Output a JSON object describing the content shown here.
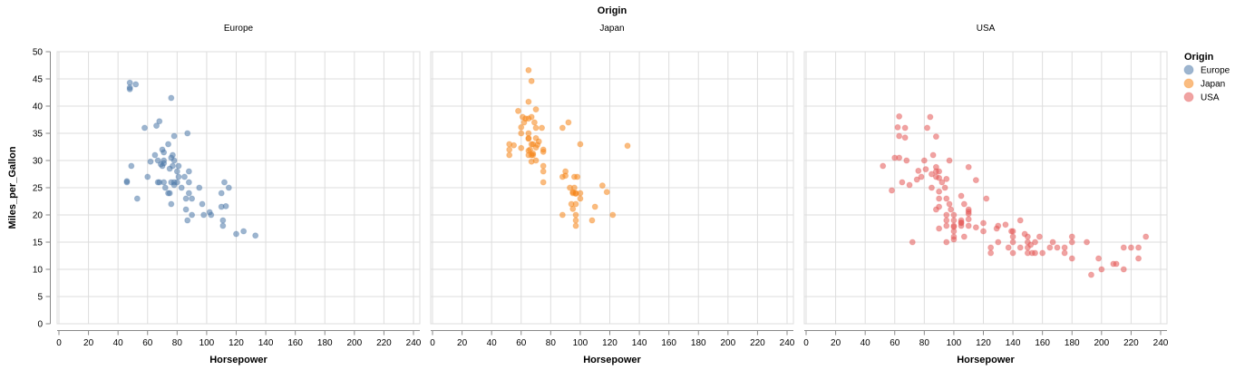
{
  "chart_data": {
    "type": "scatter",
    "title": "Origin",
    "xlabel": "Horsepower",
    "ylabel": "Miles_per_Gallon",
    "xlim": [
      0,
      240
    ],
    "ylim": [
      0,
      50
    ],
    "x_ticks": [
      "0",
      "20",
      "40",
      "60",
      "80",
      "100",
      "120",
      "140",
      "160",
      "180",
      "200",
      "220",
      "240"
    ],
    "y_ticks": [
      "0",
      "5",
      "10",
      "15",
      "20",
      "25",
      "30",
      "35",
      "40",
      "45",
      "50"
    ],
    "grid": true,
    "legend": {
      "title": "Origin",
      "position": "right",
      "entries": [
        "Europe",
        "Japan",
        "USA"
      ]
    },
    "facet_field": "Origin",
    "series": [
      {
        "name": "Europe",
        "color": "#4c78a8",
        "points": [
          [
            46,
            26
          ],
          [
            46,
            26.2
          ],
          [
            48,
            44.3
          ],
          [
            48,
            43.1
          ],
          [
            48,
            43.4
          ],
          [
            49,
            29
          ],
          [
            52,
            44
          ],
          [
            53,
            23
          ],
          [
            58,
            36
          ],
          [
            60,
            27
          ],
          [
            62,
            29.8
          ],
          [
            65,
            31
          ],
          [
            66,
            36.4
          ],
          [
            67,
            26
          ],
          [
            67,
            30
          ],
          [
            68,
            37.2
          ],
          [
            68,
            26
          ],
          [
            69,
            29.3
          ],
          [
            70,
            29
          ],
          [
            70,
            32
          ],
          [
            71,
            31.5
          ],
          [
            71,
            29.5
          ],
          [
            71,
            26
          ],
          [
            71,
            30
          ],
          [
            72,
            25
          ],
          [
            74,
            33
          ],
          [
            74,
            24
          ],
          [
            75,
            24
          ],
          [
            75,
            28.5
          ],
          [
            76,
            26
          ],
          [
            76,
            30.5
          ],
          [
            76,
            41.5
          ],
          [
            76,
            22
          ],
          [
            77,
            31
          ],
          [
            77,
            29
          ],
          [
            78,
            34.5
          ],
          [
            78,
            25.5
          ],
          [
            78,
            30
          ],
          [
            78,
            26
          ],
          [
            80,
            26
          ],
          [
            80,
            28
          ],
          [
            81,
            27
          ],
          [
            81,
            29
          ],
          [
            83,
            25
          ],
          [
            85,
            27
          ],
          [
            86,
            23
          ],
          [
            86,
            21
          ],
          [
            87,
            35
          ],
          [
            87,
            19
          ],
          [
            88,
            28
          ],
          [
            88,
            24
          ],
          [
            88,
            26
          ],
          [
            90,
            20
          ],
          [
            90,
            23
          ],
          [
            95,
            25
          ],
          [
            97,
            22
          ],
          [
            98,
            20
          ],
          [
            102,
            20.5
          ],
          [
            103,
            20
          ],
          [
            110,
            21.5
          ],
          [
            110,
            24
          ],
          [
            111,
            19
          ],
          [
            111,
            18
          ],
          [
            112,
            26
          ],
          [
            113,
            21.6
          ],
          [
            115,
            25
          ],
          [
            120,
            16.5
          ],
          [
            125,
            17
          ],
          [
            133,
            16.2
          ]
        ]
      },
      {
        "name": "Japan",
        "color": "#f58518",
        "points": [
          [
            52,
            31
          ],
          [
            52,
            32
          ],
          [
            52,
            33
          ],
          [
            55,
            32.8
          ],
          [
            58,
            39.1
          ],
          [
            60,
            35
          ],
          [
            60,
            32.3
          ],
          [
            60,
            36.1
          ],
          [
            61,
            38
          ],
          [
            62,
            37
          ],
          [
            63,
            37.7
          ],
          [
            65,
            37.7
          ],
          [
            65,
            35
          ],
          [
            65,
            46.6
          ],
          [
            65,
            34
          ],
          [
            65,
            31
          ],
          [
            65,
            34.1
          ],
          [
            65,
            40.8
          ],
          [
            65,
            31.8
          ],
          [
            66,
            32
          ],
          [
            67,
            38
          ],
          [
            67,
            33
          ],
          [
            67,
            29.8
          ],
          [
            67,
            31
          ],
          [
            67,
            44.6
          ],
          [
            68,
            33
          ],
          [
            68,
            31
          ],
          [
            68,
            31.3
          ],
          [
            69,
            37
          ],
          [
            70,
            34.1
          ],
          [
            70,
            36
          ],
          [
            70,
            30
          ],
          [
            70,
            39.4
          ],
          [
            70,
            32.4
          ],
          [
            71,
            32.9
          ],
          [
            72,
            33.5
          ],
          [
            74,
            36
          ],
          [
            75,
            32
          ],
          [
            75,
            29
          ],
          [
            75,
            28
          ],
          [
            75,
            26
          ],
          [
            75,
            31.6
          ],
          [
            88,
            27
          ],
          [
            88,
            36
          ],
          [
            88,
            20
          ],
          [
            90,
            27.2
          ],
          [
            90,
            28
          ],
          [
            92,
            37
          ],
          [
            93,
            25
          ],
          [
            94,
            22
          ],
          [
            95,
            24
          ],
          [
            95,
            21.1
          ],
          [
            95,
            24.2
          ],
          [
            96,
            27
          ],
          [
            96,
            25
          ],
          [
            97,
            18
          ],
          [
            97,
            19
          ],
          [
            97,
            24
          ],
          [
            97,
            23.9
          ],
          [
            97,
            22
          ],
          [
            97,
            20
          ],
          [
            98,
            27
          ],
          [
            100,
            23
          ],
          [
            100,
            24
          ],
          [
            100,
            33
          ],
          [
            108,
            19
          ],
          [
            110,
            21.5
          ],
          [
            115,
            25.4
          ],
          [
            118,
            24.2
          ],
          [
            122,
            20
          ],
          [
            132,
            32.7
          ]
        ]
      },
      {
        "name": "USA",
        "color": "#e45756",
        "points": [
          [
            52,
            29
          ],
          [
            58,
            24.5
          ],
          [
            60,
            30.5
          ],
          [
            62,
            36.1
          ],
          [
            63,
            38.1
          ],
          [
            63,
            34.5
          ],
          [
            63,
            30.5
          ],
          [
            65,
            26
          ],
          [
            67,
            34.2
          ],
          [
            67,
            36
          ],
          [
            68,
            30
          ],
          [
            70,
            25.5
          ],
          [
            72,
            15
          ],
          [
            75,
            26.5
          ],
          [
            76,
            28.1
          ],
          [
            78,
            27
          ],
          [
            80,
            30
          ],
          [
            81,
            28.4
          ],
          [
            82,
            36
          ],
          [
            84,
            38
          ],
          [
            85,
            25
          ],
          [
            85,
            27.5
          ],
          [
            86,
            31
          ],
          [
            88,
            27
          ],
          [
            88,
            28
          ],
          [
            88,
            28.8
          ],
          [
            88,
            34.4
          ],
          [
            88,
            21
          ],
          [
            90,
            23
          ],
          [
            90,
            17.5
          ],
          [
            90,
            21.5
          ],
          [
            90,
            28
          ],
          [
            90,
            26.8
          ],
          [
            90,
            24.3
          ],
          [
            92,
            26
          ],
          [
            94,
            25
          ],
          [
            95,
            23
          ],
          [
            95,
            19
          ],
          [
            95,
            20
          ],
          [
            95,
            18
          ],
          [
            95,
            15
          ],
          [
            95,
            26.6
          ],
          [
            97,
            30
          ],
          [
            97,
            22
          ],
          [
            98,
            21
          ],
          [
            100,
            20
          ],
          [
            100,
            19
          ],
          [
            100,
            17
          ],
          [
            100,
            15.5
          ],
          [
            100,
            18
          ],
          [
            100,
            16
          ],
          [
            100,
            17.8
          ],
          [
            105,
            18
          ],
          [
            105,
            18.6
          ],
          [
            105,
            19
          ],
          [
            105,
            23.5
          ],
          [
            105,
            18.5
          ],
          [
            107,
            16
          ],
          [
            107,
            22
          ],
          [
            110,
            18
          ],
          [
            110,
            19.2
          ],
          [
            110,
            20.6
          ],
          [
            110,
            21
          ],
          [
            110,
            20.2
          ],
          [
            110,
            28.8
          ],
          [
            115,
            17.7
          ],
          [
            115,
            26.4
          ],
          [
            120,
            17
          ],
          [
            120,
            18.5
          ],
          [
            122,
            23
          ],
          [
            125,
            13
          ],
          [
            125,
            14
          ],
          [
            129,
            17.5
          ],
          [
            130,
            15
          ],
          [
            130,
            18
          ],
          [
            135,
            18.2
          ],
          [
            137,
            14
          ],
          [
            139,
            17
          ],
          [
            140,
            13
          ],
          [
            140,
            15
          ],
          [
            140,
            16
          ],
          [
            140,
            17
          ],
          [
            145,
            14
          ],
          [
            145,
            19
          ],
          [
            148,
            16.5
          ],
          [
            150,
            13
          ],
          [
            150,
            14
          ],
          [
            150,
            15
          ],
          [
            150,
            16
          ],
          [
            152,
            14.5
          ],
          [
            153,
            13
          ],
          [
            155,
            13
          ],
          [
            155,
            15
          ],
          [
            158,
            16
          ],
          [
            160,
            13
          ],
          [
            165,
            14
          ],
          [
            167,
            15
          ],
          [
            170,
            14
          ],
          [
            175,
            14
          ],
          [
            175,
            13
          ],
          [
            180,
            12
          ],
          [
            180,
            16
          ],
          [
            180,
            15
          ],
          [
            190,
            15
          ],
          [
            193,
            9
          ],
          [
            198,
            12
          ],
          [
            200,
            10
          ],
          [
            208,
            11
          ],
          [
            210,
            11
          ],
          [
            215,
            14
          ],
          [
            215,
            10
          ],
          [
            220,
            14
          ],
          [
            225,
            12
          ],
          [
            225,
            14
          ],
          [
            230,
            16
          ]
        ]
      }
    ]
  }
}
